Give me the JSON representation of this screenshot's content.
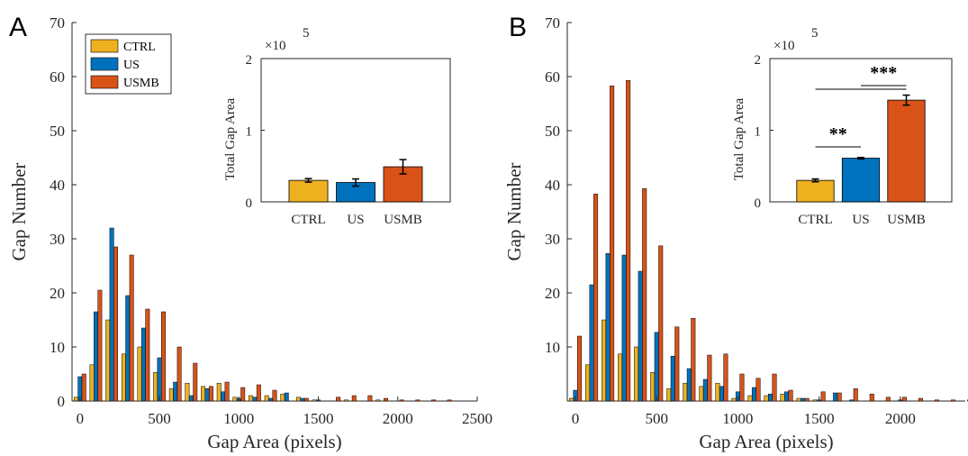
{
  "colors": {
    "CTRL": "#EDB120",
    "US": "#0072BD",
    "USMB": "#D95319",
    "axis": "#262626"
  },
  "chart_data": [
    {
      "panel": "A",
      "type": "bar",
      "xlabel": "Gap Area (pixels)",
      "ylabel": "Gap Number",
      "xlim": [
        -50,
        2500
      ],
      "ylim": [
        0,
        70
      ],
      "xticks": [
        0,
        500,
        1000,
        1500,
        2000,
        2500
      ],
      "yticks": [
        0,
        10,
        20,
        30,
        40,
        50,
        60,
        70
      ],
      "bin_centers": [
        0,
        100,
        200,
        300,
        400,
        500,
        600,
        700,
        800,
        900,
        1000,
        1100,
        1200,
        1300,
        1400,
        1500,
        1600,
        1700,
        1800,
        1900,
        2000,
        2100,
        2200,
        2300,
        2400
      ],
      "legend": {
        "position": "top-left",
        "entries": [
          "CTRL",
          "US",
          "USMB"
        ]
      },
      "series": [
        {
          "name": "CTRL",
          "values": [
            0.7,
            6.7,
            15,
            8.7,
            10,
            5.3,
            2.3,
            3.3,
            2.7,
            3.3,
            0.7,
            1,
            1,
            1.3,
            0.7,
            0.2,
            0,
            0.2,
            0,
            0.2,
            0,
            0,
            0,
            0,
            0
          ]
        },
        {
          "name": "US",
          "values": [
            4.5,
            16.5,
            32,
            19.5,
            13.5,
            8,
            3.5,
            1,
            2.3,
            1.7,
            0.5,
            0.7,
            0.5,
            1.5,
            0.5,
            0.2,
            0,
            0,
            0,
            0,
            0,
            0,
            0,
            0,
            0
          ]
        },
        {
          "name": "USMB",
          "values": [
            5,
            20.5,
            28.5,
            27,
            17,
            16.5,
            10,
            7,
            2.7,
            3.5,
            2.5,
            3,
            2,
            0,
            0.5,
            0,
            0.7,
            1,
            1,
            0.5,
            0.2,
            0.2,
            0.2,
            0.2,
            0
          ]
        }
      ],
      "inset": {
        "type": "bar",
        "ylabel": "Total Gap Area",
        "scale_label": "×10",
        "scale_exp": "5",
        "ylim": [
          0,
          2
        ],
        "yticks": [
          0,
          1,
          2
        ],
        "categories": [
          "CTRL",
          "US",
          "USMB"
        ],
        "values": [
          0.3,
          0.27,
          0.49
        ],
        "errors": [
          0.025,
          0.05,
          0.1
        ],
        "significance": []
      }
    },
    {
      "panel": "B",
      "type": "bar",
      "xlabel": "Gap Area (pixels)",
      "ylabel": "Gap Number",
      "xlim": [
        -50,
        2400
      ],
      "ylim": [
        0,
        70
      ],
      "xticks": [
        0,
        500,
        1000,
        1500,
        2000
      ],
      "yticks": [
        10,
        20,
        30,
        40,
        50,
        60,
        70
      ],
      "bin_centers": [
        0,
        100,
        200,
        300,
        400,
        500,
        600,
        700,
        800,
        900,
        1000,
        1100,
        1200,
        1300,
        1400,
        1500,
        1600,
        1700,
        1800,
        1900,
        2000,
        2100,
        2200,
        2300,
        2400
      ],
      "series": [
        {
          "name": "CTRL",
          "values": [
            0.5,
            6.7,
            15,
            8.7,
            10,
            5.3,
            2.3,
            3.3,
            2.7,
            3.3,
            0.5,
            1,
            1,
            1.3,
            0.5,
            0.2,
            0,
            0,
            0,
            0,
            0,
            0,
            0,
            0,
            0
          ]
        },
        {
          "name": "US",
          "values": [
            2,
            21.5,
            27.3,
            27,
            24,
            12.7,
            8.3,
            6,
            4,
            2.7,
            1.7,
            2.5,
            1.3,
            1.7,
            0.5,
            0.2,
            1.5,
            0.2,
            0,
            0,
            0.2,
            0,
            0,
            0,
            0
          ]
        },
        {
          "name": "USMB",
          "values": [
            12,
            38.3,
            58.3,
            59.3,
            39.3,
            28.7,
            13.7,
            15.3,
            8.5,
            8.7,
            5,
            4.2,
            5,
            2,
            0.5,
            1.7,
            1.5,
            2.3,
            1.3,
            0.7,
            0.7,
            0.5,
            0.2,
            0.2,
            0.2
          ]
        }
      ],
      "inset": {
        "type": "bar",
        "ylabel": "Total Gap Area",
        "scale_label": "×10",
        "scale_exp": "5",
        "ylim": [
          0,
          2
        ],
        "yticks": [
          0,
          1,
          2
        ],
        "categories": [
          "CTRL",
          "US",
          "USMB"
        ],
        "values": [
          0.3,
          0.61,
          1.42
        ],
        "errors": [
          0.02,
          0.01,
          0.07
        ],
        "significance": [
          {
            "pair": [
              "CTRL",
              "US"
            ],
            "label": "**"
          },
          {
            "pair": [
              "US",
              "USMB"
            ],
            "label": "***"
          },
          {
            "pair": [
              "CTRL",
              "USMB"
            ],
            "label": ""
          }
        ]
      }
    }
  ]
}
